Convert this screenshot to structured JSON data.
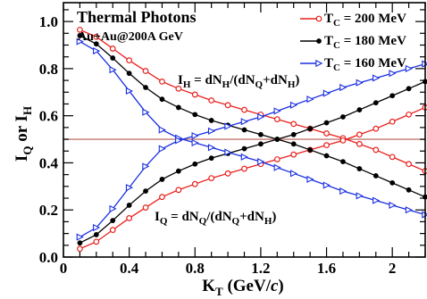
{
  "chart_data": {
    "type": "line",
    "title": "Thermal Photons",
    "subtitle": "Au+Au@200A GeV",
    "xlabel": {
      "main": "K",
      "sub": "T",
      "unit_pre": " (GeV/",
      "unit_italic": "c",
      "unit_post": ")"
    },
    "ylabel": {
      "p1": "I",
      "s1": "Q",
      "mid": " or ",
      "p2": "I",
      "s2": "H"
    },
    "xlim": [
      0,
      2.2
    ],
    "ylim": [
      0,
      1.08
    ],
    "x_ticks": [
      0,
      0.4,
      0.8,
      1.2,
      1.6,
      2
    ],
    "x_tick_labels": [
      "0",
      "0.4",
      "0.8",
      "1.2",
      "1.6",
      "2"
    ],
    "y_ticks": [
      0,
      0.2,
      0.4,
      0.6,
      0.8,
      1.0
    ],
    "y_tick_labels": [
      "0.0",
      "0.2",
      "0.4",
      "0.6",
      "0.8",
      "1.0"
    ],
    "reference_line": {
      "y": 0.5,
      "color": "#c07870"
    },
    "legend_position": "top-right",
    "annotations": {
      "ih": {
        "main": "I",
        "sub": "H",
        "eq": " = dN",
        "eq_sub": "H",
        "tail": "/(dN",
        "t_sub1": "Q",
        "plus": "+dN",
        "t_sub2": "H",
        "close": ")"
      },
      "iq": {
        "main": "I",
        "sub": "Q",
        "eq": " = dN",
        "eq_sub": "Q",
        "tail": "/(dN",
        "t_sub1": "Q",
        "plus": "+dN",
        "t_sub2": "H",
        "close": ")"
      }
    },
    "x": [
      0.1,
      0.2,
      0.3,
      0.4,
      0.5,
      0.6,
      0.7,
      0.8,
      0.9,
      1.0,
      1.1,
      1.2,
      1.3,
      1.4,
      1.5,
      1.6,
      1.7,
      1.8,
      1.9,
      2.0,
      2.1,
      2.2
    ],
    "series": [
      {
        "name": "T_C = 200 MeV",
        "legend": {
          "main": "T",
          "sub": "C",
          "rest": " = 200 MeV"
        },
        "color": "#e8201c",
        "marker": "open-circle",
        "I_H": [
          0.965,
          0.935,
          0.885,
          0.835,
          0.79,
          0.745,
          0.715,
          0.69,
          0.665,
          0.645,
          0.625,
          0.605,
          0.585,
          0.565,
          0.545,
          0.525,
          0.505,
          0.48,
          0.455,
          0.425,
          0.395,
          0.365
        ],
        "I_Q": [
          0.035,
          0.065,
          0.115,
          0.165,
          0.21,
          0.255,
          0.285,
          0.31,
          0.335,
          0.355,
          0.375,
          0.395,
          0.415,
          0.435,
          0.455,
          0.475,
          0.495,
          0.52,
          0.545,
          0.575,
          0.605,
          0.635
        ]
      },
      {
        "name": "T_C = 180 MeV",
        "legend": {
          "main": "T",
          "sub": "C",
          "rest": " = 180 MeV"
        },
        "color": "#000000",
        "marker": "filled-circle",
        "I_H": [
          0.94,
          0.905,
          0.845,
          0.78,
          0.72,
          0.67,
          0.635,
          0.605,
          0.58,
          0.56,
          0.54,
          0.52,
          0.5,
          0.48,
          0.455,
          0.43,
          0.405,
          0.375,
          0.345,
          0.315,
          0.285,
          0.255
        ],
        "I_Q": [
          0.06,
          0.095,
          0.155,
          0.22,
          0.28,
          0.33,
          0.365,
          0.395,
          0.42,
          0.44,
          0.46,
          0.48,
          0.5,
          0.52,
          0.545,
          0.57,
          0.595,
          0.625,
          0.655,
          0.685,
          0.715,
          0.745
        ]
      },
      {
        "name": "T_C = 160 MeV",
        "legend": {
          "main": "T",
          "sub": "C",
          "rest": " = 160 MeV"
        },
        "color": "#1a2fe0",
        "marker": "open-triangle-right",
        "I_H": [
          0.915,
          0.875,
          0.795,
          0.705,
          0.615,
          0.54,
          0.505,
          0.485,
          0.465,
          0.445,
          0.425,
          0.405,
          0.38,
          0.355,
          0.33,
          0.305,
          0.28,
          0.26,
          0.24,
          0.22,
          0.2,
          0.18
        ],
        "I_Q": [
          0.085,
          0.125,
          0.205,
          0.295,
          0.385,
          0.46,
          0.495,
          0.515,
          0.535,
          0.555,
          0.575,
          0.595,
          0.62,
          0.645,
          0.67,
          0.695,
          0.72,
          0.74,
          0.76,
          0.78,
          0.8,
          0.82
        ]
      }
    ]
  }
}
